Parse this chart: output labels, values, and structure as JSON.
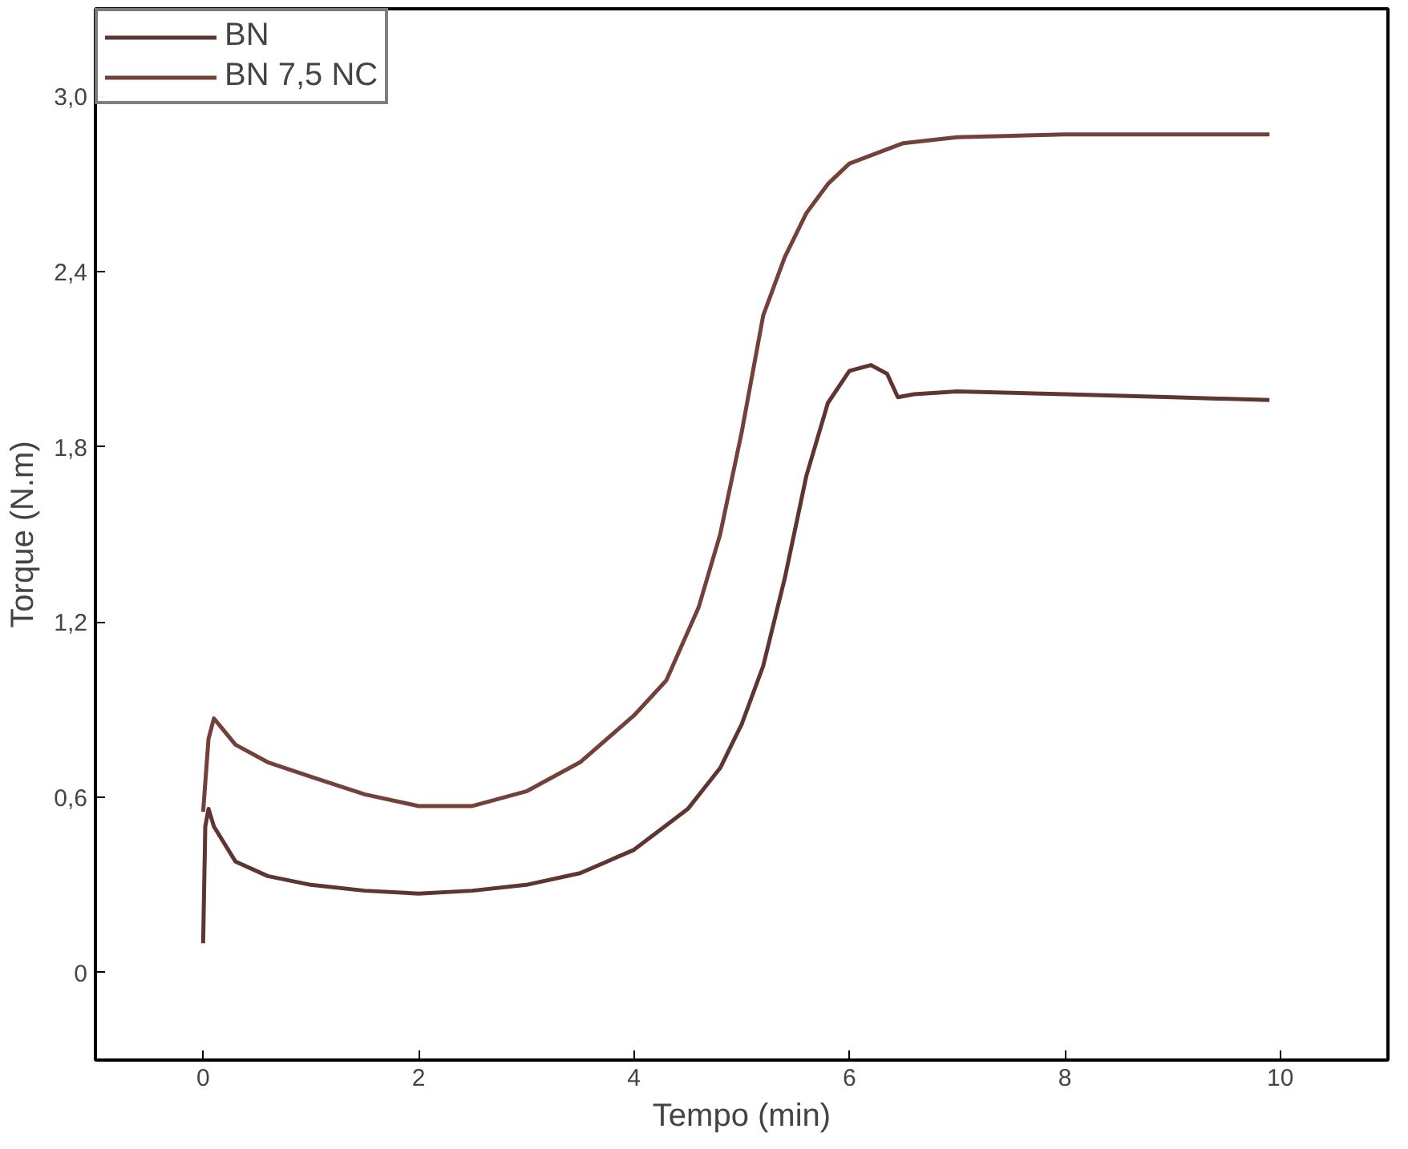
{
  "chart_data": {
    "type": "line",
    "xlabel": "Tempo (min)",
    "ylabel": "Torque (N.m)",
    "xlim": [
      -1,
      11
    ],
    "ylim": [
      -0.3,
      3.3
    ],
    "xticks": [
      0,
      2,
      4,
      6,
      8,
      10
    ],
    "yticks": [
      {
        "value": 0,
        "label": "0"
      },
      {
        "value": 0.6,
        "label": "0,6"
      },
      {
        "value": 1.2,
        "label": "1,2"
      },
      {
        "value": 1.8,
        "label": "1,8"
      },
      {
        "value": 2.4,
        "label": "2,4"
      },
      {
        "value": 3.0,
        "label": "3,0"
      }
    ],
    "legend": "top left",
    "grid": false,
    "line_style": "solid",
    "marker": "none",
    "series": [
      {
        "name": "BN",
        "color": "#5e3530",
        "x": [
          0.0,
          0.02,
          0.05,
          0.1,
          0.3,
          0.6,
          1.0,
          1.5,
          2.0,
          2.5,
          3.0,
          3.5,
          4.0,
          4.5,
          4.8,
          5.0,
          5.2,
          5.4,
          5.6,
          5.8,
          6.0,
          6.2,
          6.35,
          6.45,
          6.6,
          7.0,
          8.0,
          9.0,
          9.9
        ],
        "values": [
          0.1,
          0.5,
          0.56,
          0.5,
          0.38,
          0.33,
          0.3,
          0.28,
          0.27,
          0.28,
          0.3,
          0.34,
          0.42,
          0.56,
          0.7,
          0.85,
          1.05,
          1.35,
          1.7,
          1.95,
          2.06,
          2.08,
          2.05,
          1.97,
          1.98,
          1.99,
          1.98,
          1.97,
          1.96
        ]
      },
      {
        "name": "BN 7,5 NC",
        "color": "#73403a",
        "x": [
          0.0,
          0.05,
          0.1,
          0.3,
          0.6,
          1.0,
          1.5,
          2.0,
          2.5,
          3.0,
          3.5,
          4.0,
          4.3,
          4.6,
          4.8,
          5.0,
          5.2,
          5.4,
          5.6,
          5.8,
          6.0,
          6.5,
          7.0,
          8.0,
          9.0,
          9.9
        ],
        "values": [
          0.55,
          0.8,
          0.87,
          0.78,
          0.72,
          0.67,
          0.61,
          0.57,
          0.57,
          0.62,
          0.72,
          0.88,
          1.0,
          1.25,
          1.5,
          1.85,
          2.25,
          2.45,
          2.6,
          2.7,
          2.77,
          2.84,
          2.86,
          2.87,
          2.87,
          2.87
        ]
      }
    ]
  }
}
